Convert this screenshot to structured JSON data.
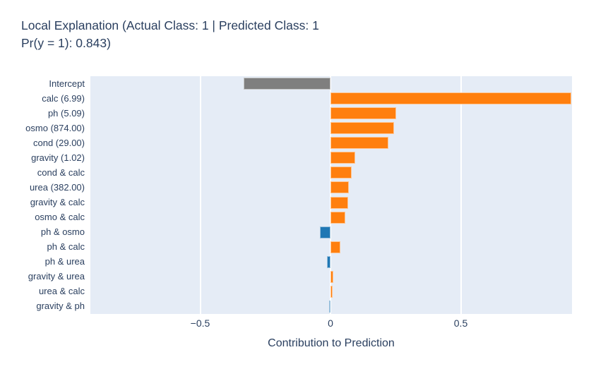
{
  "title": {
    "line1": "Local Explanation (Actual Class: 1 | Predicted Class: 1",
    "line2": "Pr(y = 1): 0.843)",
    "full": "Local Explanation (Actual Class: 1 | Predicted Class: 1 Pr(y = 1): 0.843)"
  },
  "chart_data": {
    "type": "bar",
    "orientation": "horizontal",
    "title": "Local Explanation (Actual Class: 1 | Predicted Class: 1 Pr(y = 1): 0.843)",
    "xlabel": "Contribution to Prediction",
    "ylabel": "",
    "categories": [
      "Intercept",
      "calc (6.99)",
      "ph (5.09)",
      "osmo (874.00)",
      "cond (29.00)",
      "gravity (1.02)",
      "cond & calc",
      "urea (382.00)",
      "gravity & calc",
      "osmo & calc",
      "ph & osmo",
      "ph & calc",
      "ph & urea",
      "gravity & urea",
      "urea & calc",
      "gravity & ph"
    ],
    "values": [
      -0.333,
      0.925,
      0.252,
      0.244,
      0.222,
      0.095,
      0.081,
      0.07,
      0.068,
      0.057,
      -0.041,
      0.038,
      -0.014,
      0.012,
      0.009,
      -0.006
    ],
    "bar_colors": [
      "#7f7f7f",
      "#ff7f0e",
      "#ff7f0e",
      "#ff7f0e",
      "#ff7f0e",
      "#ff7f0e",
      "#ff7f0e",
      "#ff7f0e",
      "#ff7f0e",
      "#ff7f0e",
      "#1f77b4",
      "#ff7f0e",
      "#1f77b4",
      "#ff7f0e",
      "#ff7f0e",
      "#1f77b4"
    ],
    "xlim": [
      -0.921,
      0.925
    ],
    "xticks": {
      "labels": [
        "−0.5",
        "0",
        "0.5"
      ],
      "values": [
        -0.5,
        0,
        0.5
      ]
    },
    "grid": true,
    "legend": "none",
    "colors": {
      "positive": "#ff7f0e",
      "negative": "#1f77b4",
      "intercept": "#7f7f7f",
      "plot_background": "#e5ecf6",
      "gridline": "#ffffff",
      "text": "#2a3f5f"
    }
  }
}
